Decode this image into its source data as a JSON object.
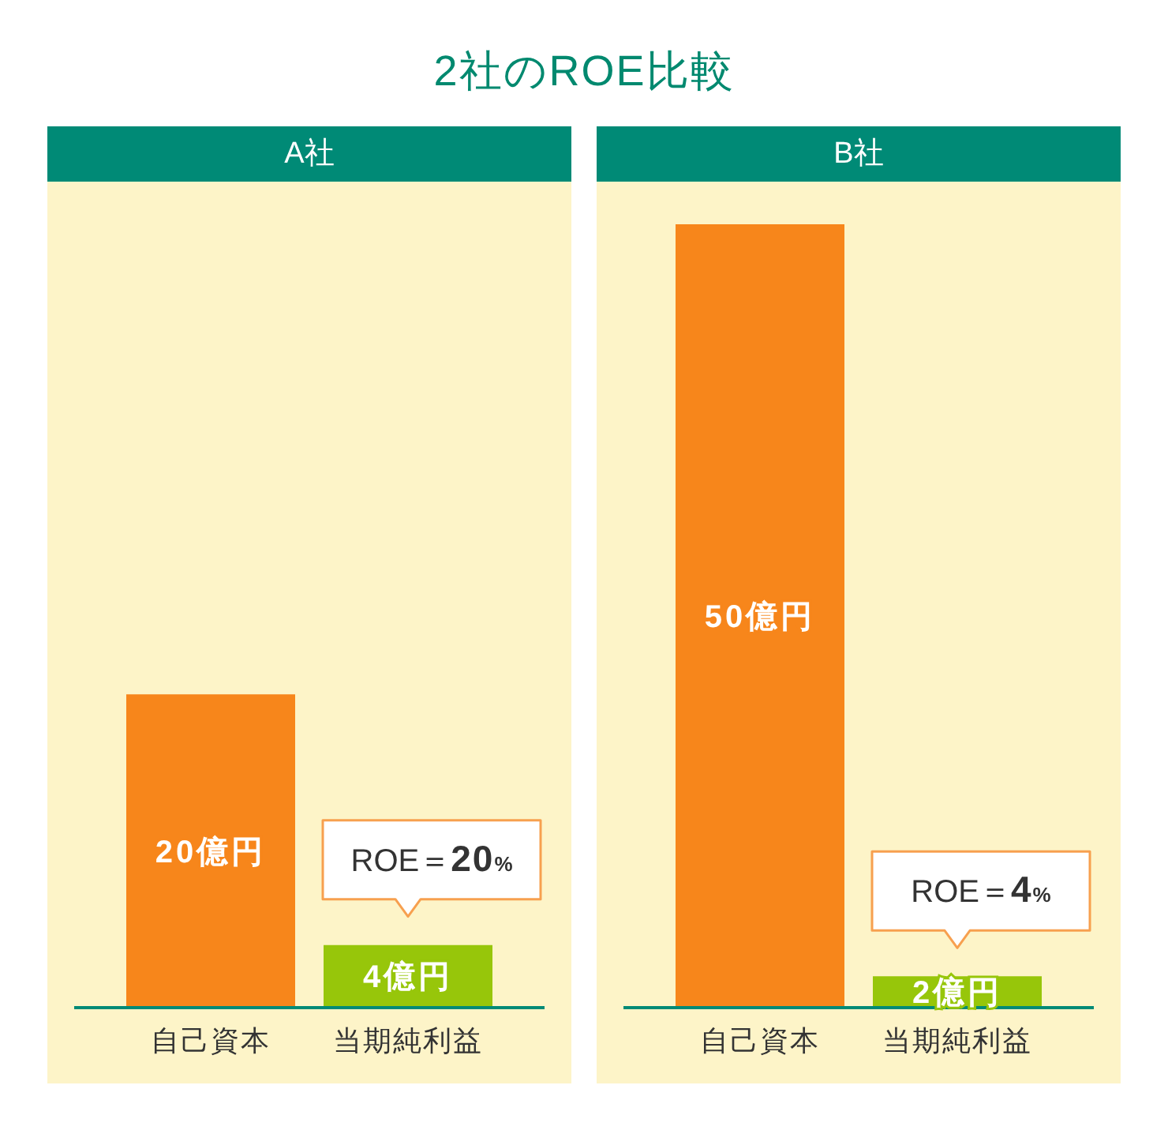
{
  "chart_data": [
    {
      "type": "bar",
      "title": "2社のROE比較",
      "subtitle": "A社",
      "categories": [
        "自己資本",
        "当期純利益"
      ],
      "values": [
        20,
        4
      ],
      "colors": [
        "#f7861b",
        "#97c60a"
      ],
      "value_labels": [
        "20億円",
        "4億円"
      ],
      "annotations": [
        {
          "text": "ROE＝20%",
          "x": "当期純利益",
          "y": 4
        }
      ],
      "tick_labels": "x"
    },
    {
      "type": "bar",
      "subtitle": "B社",
      "categories": [
        "自己資本",
        "当期純利益"
      ],
      "values": [
        50,
        2
      ],
      "colors": [
        "#f7861b",
        "#97c60a"
      ],
      "value_labels": [
        "50億円",
        "2億円"
      ],
      "annotations": [
        {
          "text": "ROE＝4%",
          "x": "当期純利益",
          "y": 2
        }
      ],
      "tick_labels": "x"
    }
  ]
}
